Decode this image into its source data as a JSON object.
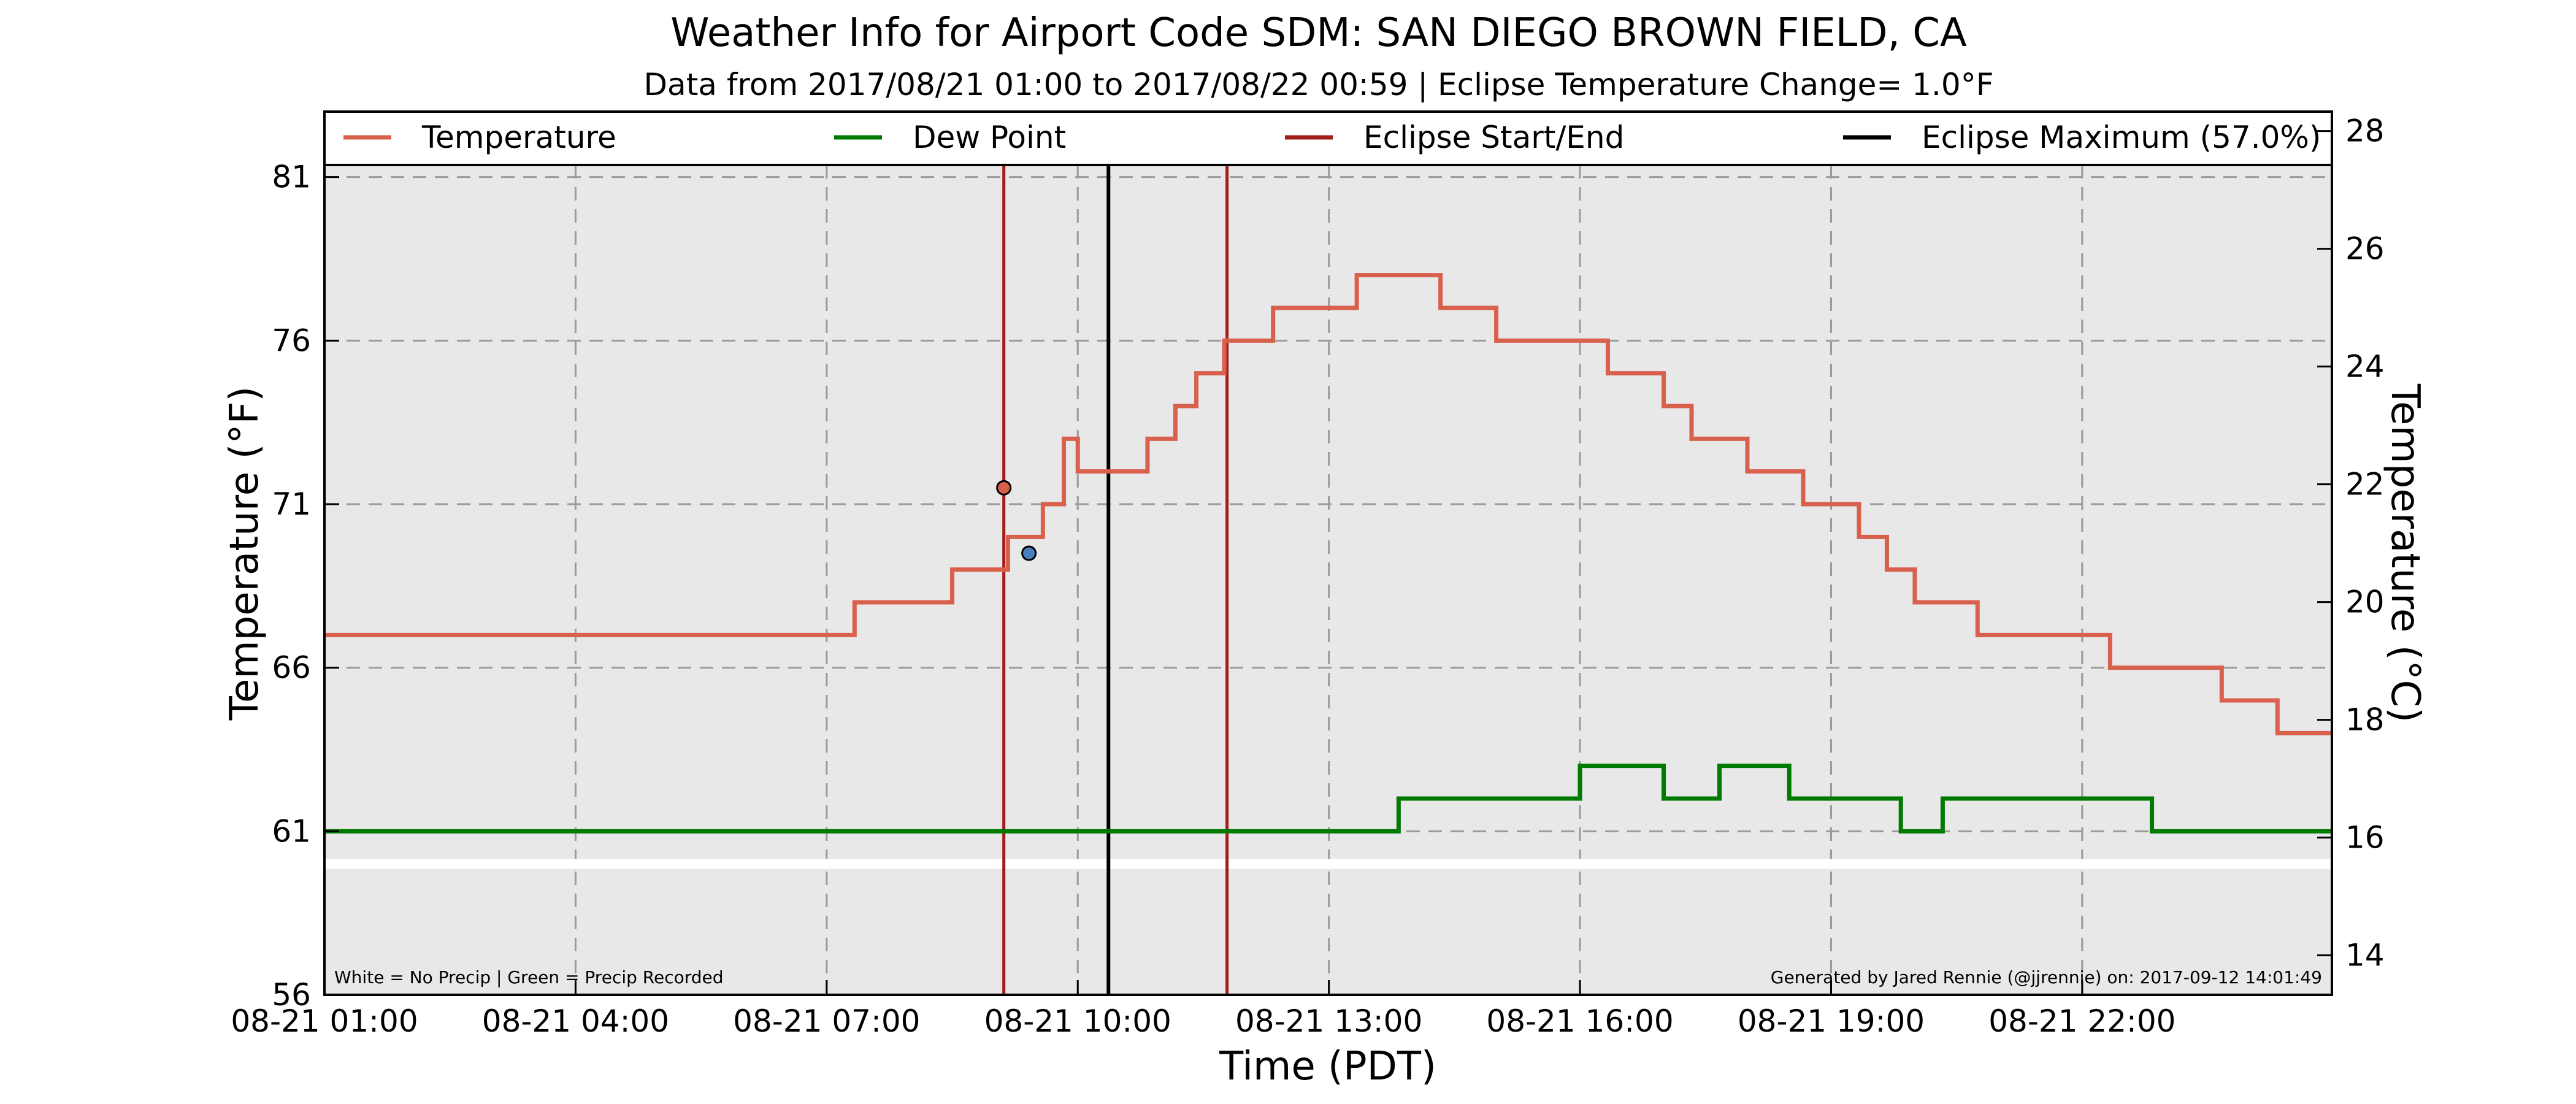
{
  "chart_data": {
    "type": "line",
    "title": "Weather Info for Airport Code SDM: SAN DIEGO BROWN FIELD, CA",
    "subtitle": "Data from 2017/08/21 01:00 to 2017/08/22 00:59 | Eclipse Temperature Change= 1.0°F",
    "xlabel": "Time (PDT)",
    "ylabel": "Temperature (°F)",
    "ylabel_right": "Temperature (°C)",
    "xlim": [
      "2017-08-21 01:00",
      "2017-08-22 00:59"
    ],
    "ylim": [
      56,
      83
    ],
    "ylim_right": [
      13.33,
      28.33
    ],
    "x_ticks": [
      "08-21 01:00",
      "08-21 04:00",
      "08-21 07:00",
      "08-21 10:00",
      "08-21 13:00",
      "08-21 16:00",
      "08-21 19:00",
      "08-21 22:00"
    ],
    "y_ticks": [
      56,
      61,
      66,
      71,
      76,
      81
    ],
    "y_ticks_right": [
      14,
      16,
      18,
      20,
      22,
      24,
      26,
      28
    ],
    "grid": true,
    "legend_position": "top",
    "legend": [
      {
        "label": "Temperature",
        "color": "#d9604c"
      },
      {
        "label": "Dew Point",
        "color": "#007a00"
      },
      {
        "label": "Eclipse Start/End",
        "color": "#a31d1d"
      },
      {
        "label": "Eclipse Maximum (57.0%)",
        "color": "#000000"
      }
    ],
    "series": [
      {
        "name": "Temperature",
        "color": "#d9604c",
        "points": [
          [
            "01:00",
            67
          ],
          [
            "02:30",
            67
          ],
          [
            "03:00",
            67
          ],
          [
            "04:00",
            67
          ],
          [
            "05:00",
            67
          ],
          [
            "06:00",
            67
          ],
          [
            "07:00",
            67
          ],
          [
            "07:20",
            68
          ],
          [
            "08:00",
            68
          ],
          [
            "08:10",
            68
          ],
          [
            "08:30",
            69
          ],
          [
            "09:00",
            69
          ],
          [
            "09:10",
            70
          ],
          [
            "09:25",
            70
          ],
          [
            "09:35",
            71
          ],
          [
            "09:50",
            73
          ],
          [
            "10:00",
            72
          ],
          [
            "10:15",
            72
          ],
          [
            "10:30",
            72
          ],
          [
            "10:50",
            73
          ],
          [
            "11:10",
            74
          ],
          [
            "11:25",
            75
          ],
          [
            "11:45",
            76
          ],
          [
            "12:00",
            76
          ],
          [
            "12:20",
            77
          ],
          [
            "12:40",
            77
          ],
          [
            "13:00",
            77
          ],
          [
            "13:20",
            78
          ],
          [
            "13:40",
            78
          ],
          [
            "14:00",
            78
          ],
          [
            "14:20",
            77
          ],
          [
            "14:40",
            77
          ],
          [
            "15:00",
            76
          ],
          [
            "15:20",
            76
          ],
          [
            "15:40",
            76
          ],
          [
            "16:00",
            76
          ],
          [
            "16:20",
            75
          ],
          [
            "16:40",
            75
          ],
          [
            "17:00",
            74
          ],
          [
            "17:20",
            73
          ],
          [
            "17:40",
            73
          ],
          [
            "18:00",
            72
          ],
          [
            "18:20",
            72
          ],
          [
            "18:40",
            71
          ],
          [
            "19:00",
            71
          ],
          [
            "19:20",
            70
          ],
          [
            "19:40",
            69
          ],
          [
            "20:00",
            68
          ],
          [
            "20:30",
            68
          ],
          [
            "20:45",
            67
          ],
          [
            "21:20",
            67
          ],
          [
            "21:40",
            67
          ],
          [
            "22:20",
            66
          ],
          [
            "23:00",
            66
          ],
          [
            "23:20",
            66
          ],
          [
            "23:40",
            65
          ],
          [
            "24:15",
            65
          ],
          [
            "24:20",
            64
          ],
          [
            "24:59",
            64
          ]
        ]
      },
      {
        "name": "Dew Point",
        "color": "#007a00",
        "points": [
          [
            "01:00",
            61
          ],
          [
            "03:00",
            61
          ],
          [
            "04:00",
            61
          ],
          [
            "06:20",
            61
          ],
          [
            "07:00",
            61
          ],
          [
            "08:00",
            61
          ],
          [
            "09:00",
            61
          ],
          [
            "10:00",
            61
          ],
          [
            "11:00",
            61
          ],
          [
            "12:00",
            61
          ],
          [
            "12:40",
            61
          ],
          [
            "13:00",
            61
          ],
          [
            "13:50",
            62
          ],
          [
            "15:00",
            62
          ],
          [
            "16:00",
            63
          ],
          [
            "16:20",
            63
          ],
          [
            "17:00",
            62
          ],
          [
            "17:40",
            63
          ],
          [
            "18:30",
            62
          ],
          [
            "19:00",
            62
          ],
          [
            "19:50",
            61
          ],
          [
            "20:20",
            62
          ],
          [
            "21:00",
            62
          ],
          [
            "21:50",
            62
          ],
          [
            "22:20",
            62
          ],
          [
            "22:50",
            61
          ],
          [
            "24:00",
            61
          ],
          [
            "24:59",
            61
          ]
        ]
      }
    ],
    "eclipse_start": "09:07",
    "eclipse_end": "11:47",
    "eclipse_maximum": "10:22",
    "eclipse_markers": [
      {
        "time": "09:07",
        "value": 71.5,
        "color": "#d9604c"
      },
      {
        "time": "09:25",
        "value": 69.5,
        "color": "#4a7fbf"
      }
    ],
    "precip_strip_value": 60,
    "footer_left": "White = No Precip | Green = Precip Recorded",
    "footer_right": "Generated by Jared Rennie (@jjrennie) on: 2017-09-12 14:01:49"
  }
}
